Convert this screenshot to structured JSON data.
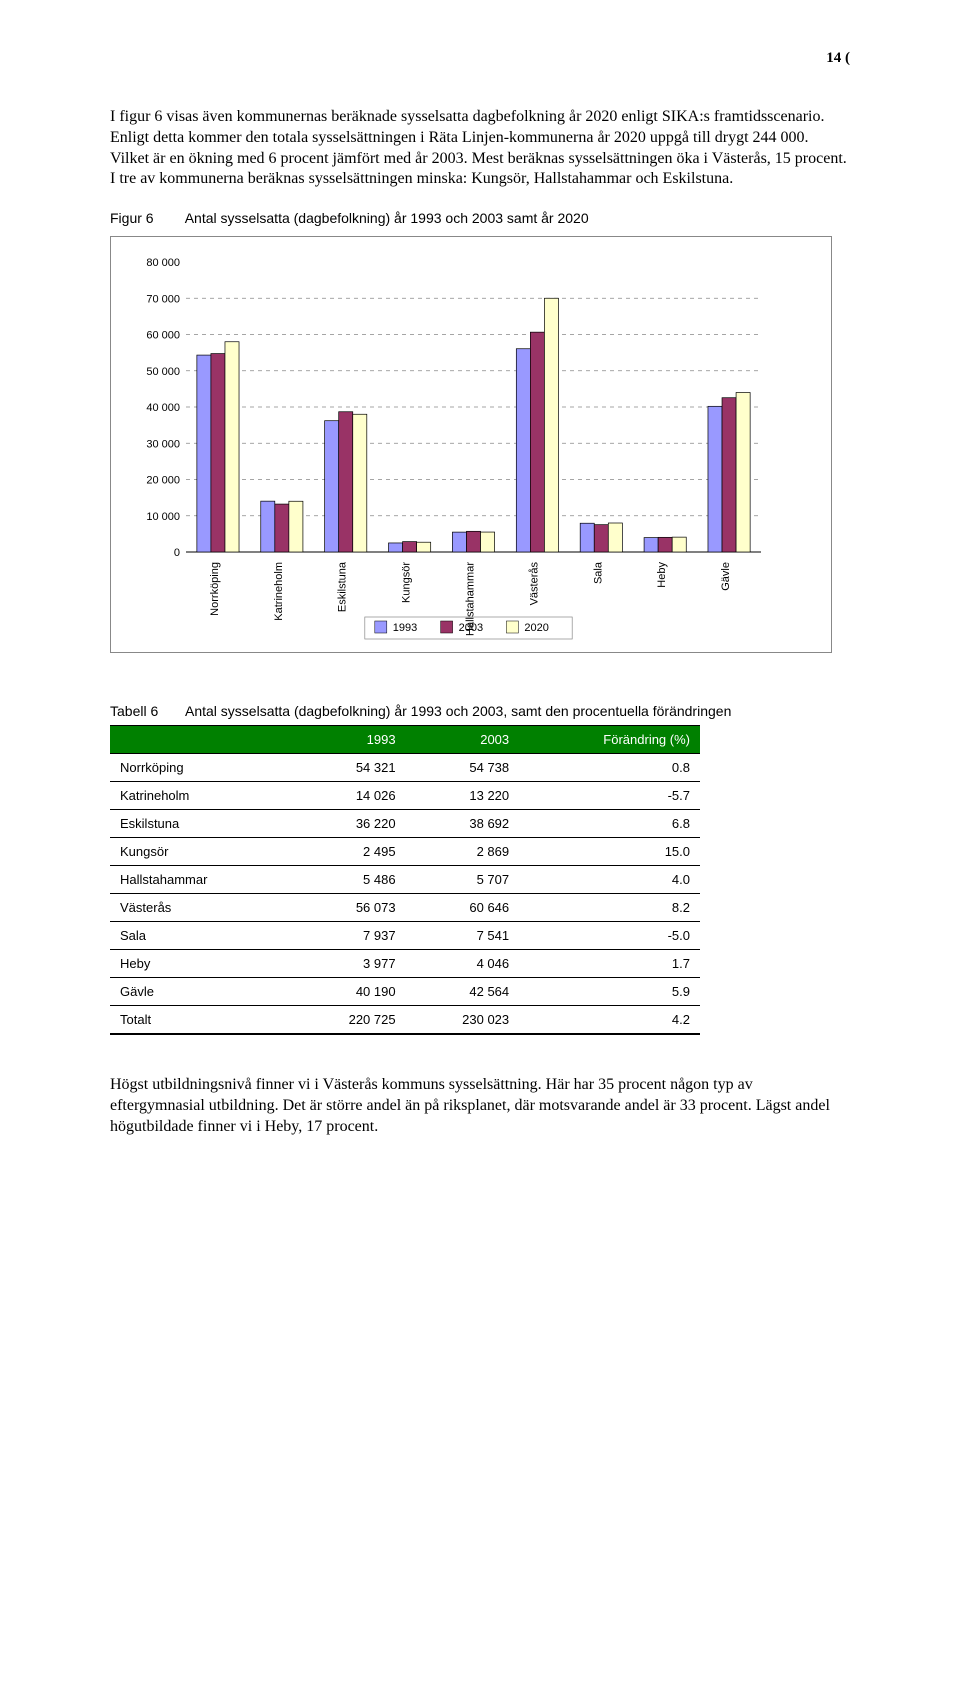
{
  "page_number": "14 (",
  "para1": "I figur 6 visas även kommunernas beräknade sysselsatta dagbefolkning år 2020 enligt SIKA:s framtidsscenario. Enligt detta kommer den totala sysselsättningen i Räta Linjen-kommunerna år 2020 uppgå till drygt 244 000. Vilket är en ökning med 6 procent jämfört med år 2003. Mest beräknas sysselsättningen öka i Västerås, 15 procent. I tre av kommunerna beräknas sysselsättningen minska: Kungsör, Hallstahammar och Eskilstuna.",
  "figure6": {
    "label": "Figur 6",
    "title": "Antal sysselsatta (dagbefolkning) år 1993 och 2003 samt år 2020",
    "categories": [
      "Norrköping",
      "Katrineholm",
      "Eskilstuna",
      "Kungsör",
      "Hallstahammar",
      "Västerås",
      "Sala",
      "Heby",
      "Gävle"
    ],
    "series": [
      {
        "name": "1993",
        "color": "#9999ff",
        "values": [
          54321,
          14026,
          36220,
          2495,
          5486,
          56073,
          7937,
          3977,
          40190
        ]
      },
      {
        "name": "2003",
        "color": "#993366",
        "values": [
          54738,
          13220,
          38692,
          2869,
          5707,
          60646,
          7541,
          4046,
          42564
        ]
      },
      {
        "name": "2020",
        "color": "#ffffcc",
        "values": [
          58000,
          14000,
          38000,
          2700,
          5500,
          70000,
          8000,
          4100,
          44000
        ]
      }
    ],
    "ylim": [
      0,
      80000
    ],
    "ytick_step": 10000,
    "yticks_labels": [
      "0",
      "10 000",
      "20 000",
      "30 000",
      "40 000",
      "50 000",
      "60 000",
      "70 000",
      "80 000"
    ],
    "grid_color": "#888888",
    "background": "#ffffff"
  },
  "table6": {
    "label": "Tabell 6",
    "title": "Antal sysselsatta (dagbefolkning) år 1993 och 2003, samt den procentuella förändringen",
    "columns": [
      "",
      "1993",
      "2003",
      "Förändring (%)"
    ],
    "rows": [
      [
        "Norrköping",
        "54 321",
        "54 738",
        "0.8"
      ],
      [
        "Katrineholm",
        "14 026",
        "13 220",
        "-5.7"
      ],
      [
        "Eskilstuna",
        "36 220",
        "38 692",
        "6.8"
      ],
      [
        "Kungsör",
        "2 495",
        "2 869",
        "15.0"
      ],
      [
        "Hallstahammar",
        "5 486",
        "5 707",
        "4.0"
      ],
      [
        "Västerås",
        "56 073",
        "60 646",
        "8.2"
      ],
      [
        "Sala",
        "7 937",
        "7 541",
        "-5.0"
      ],
      [
        "Heby",
        "3 977",
        "4 046",
        "1.7"
      ],
      [
        "Gävle",
        "40 190",
        "42 564",
        "5.9"
      ],
      [
        "Totalt",
        "220 725",
        "230 023",
        "4.2"
      ]
    ],
    "header_bg": "#008000",
    "header_fg": "#ffffff"
  },
  "para2": "Högst utbildningsnivå finner vi i Västerås kommuns sysselsättning. Här har 35 procent någon typ av eftergymnasial utbildning. Det är större andel än på riksplanet, där motsvarande andel är 33 procent. Lägst andel högutbildade finner vi i Heby, 17 procent."
}
